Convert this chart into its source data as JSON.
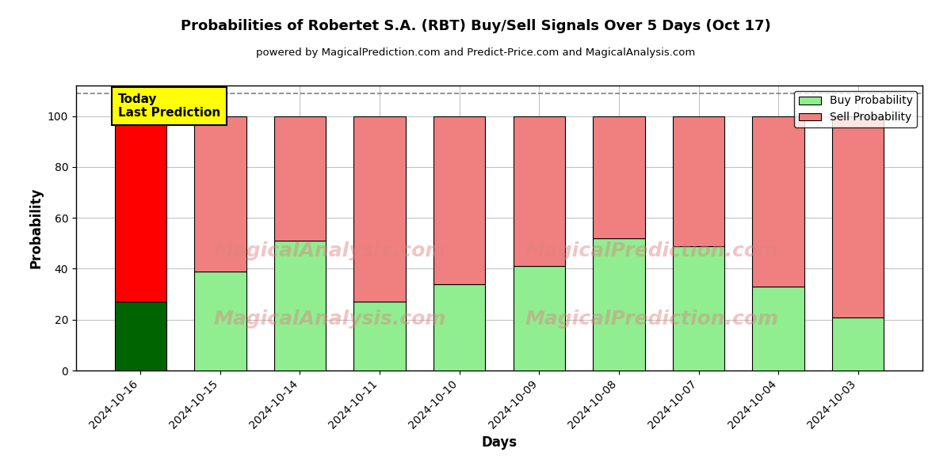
{
  "title": "Probabilities of Robertet S.A. (RBT) Buy/Sell Signals Over 5 Days (Oct 17)",
  "subtitle": "powered by MagicalPrediction.com and Predict-Price.com and MagicalAnalysis.com",
  "xlabel": "Days",
  "ylabel": "Probability",
  "categories": [
    "2024-10-16",
    "2024-10-15",
    "2024-10-14",
    "2024-10-11",
    "2024-10-10",
    "2024-10-09",
    "2024-10-08",
    "2024-10-07",
    "2024-10-04",
    "2024-10-03"
  ],
  "buy_values": [
    27,
    39,
    51,
    27,
    34,
    41,
    52,
    49,
    33,
    21
  ],
  "sell_values": [
    73,
    61,
    49,
    73,
    66,
    59,
    48,
    51,
    67,
    79
  ],
  "today_index": 0,
  "buy_color_today": "#006400",
  "sell_color_today": "#ff0000",
  "buy_color_normal": "#90ee90",
  "sell_color_normal": "#f08080",
  "bar_edgecolor": "#000000",
  "ylim": [
    0,
    112
  ],
  "yticks": [
    0,
    20,
    40,
    60,
    80,
    100
  ],
  "dashed_line_y": 109,
  "today_label_text": "Today\nLast Prediction",
  "today_label_bg": "#ffff00",
  "legend_buy_label": "Buy Probability",
  "legend_sell_label": "Sell Probability",
  "watermark_color": "#e08080",
  "watermark_alpha": 0.45,
  "background_color": "#ffffff",
  "grid_color": "#bbbbbb"
}
